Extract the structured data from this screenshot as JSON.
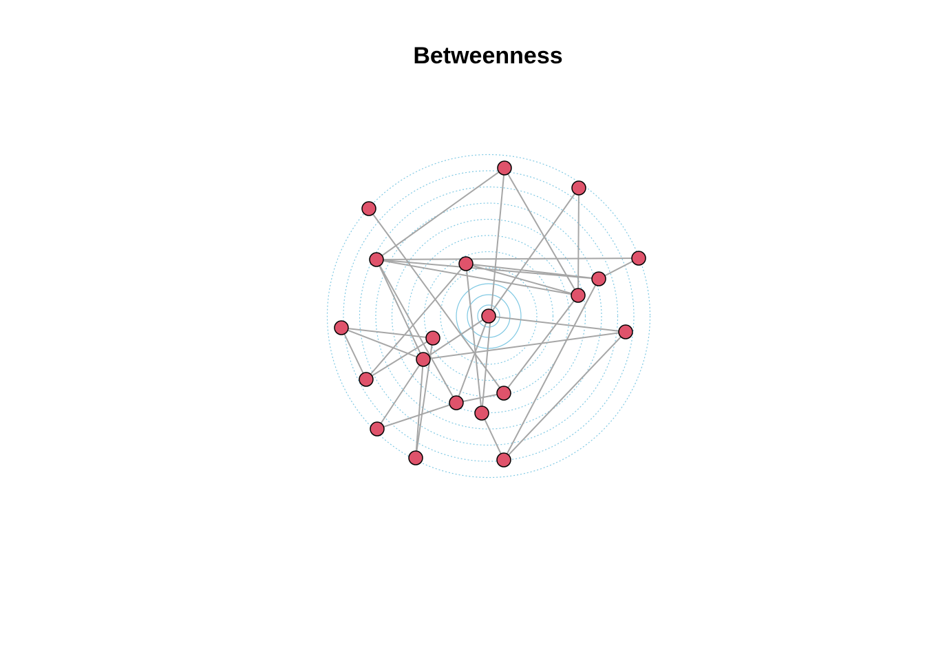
{
  "title": "Betweenness"
}
